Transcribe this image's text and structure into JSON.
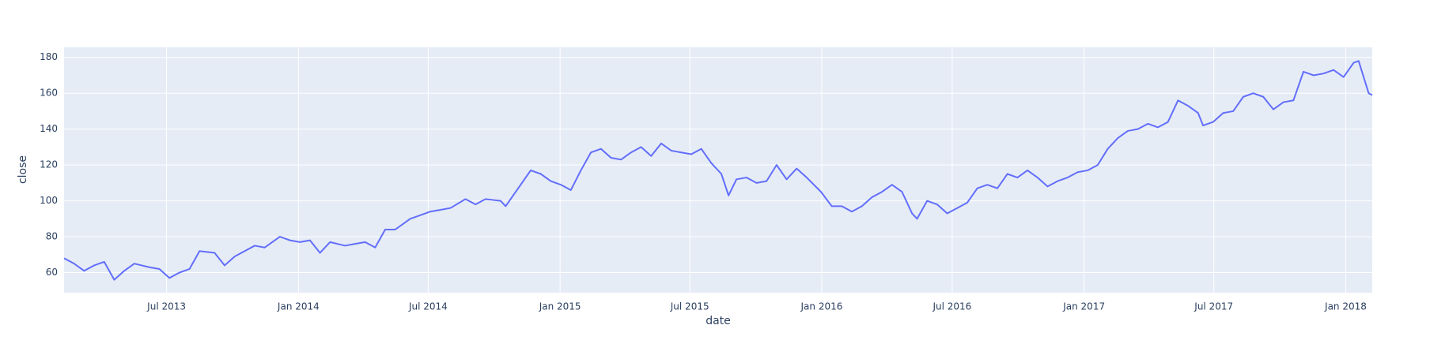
{
  "chart_data": {
    "type": "line",
    "xlabel": "date",
    "ylabel": "close",
    "color": "#636efa",
    "background": "#e5ecf6",
    "grid": true,
    "xlim": [
      "2013-02-08",
      "2018-02-07"
    ],
    "xticks": [
      {
        "value": "2013-07-01",
        "label": "Jul 2013"
      },
      {
        "value": "2014-01-01",
        "label": "Jan 2014"
      },
      {
        "value": "2014-07-01",
        "label": "Jul 2014"
      },
      {
        "value": "2015-01-01",
        "label": "Jan 2015"
      },
      {
        "value": "2015-07-01",
        "label": "Jul 2015"
      },
      {
        "value": "2016-01-01",
        "label": "Jan 2016"
      },
      {
        "value": "2016-07-01",
        "label": "Jul 2016"
      },
      {
        "value": "2017-01-01",
        "label": "Jan 2017"
      },
      {
        "value": "2017-07-01",
        "label": "Jul 2017"
      },
      {
        "value": "2018-01-01",
        "label": "Jan 2018"
      }
    ],
    "ylim": [
      48.8,
      185.6
    ],
    "yticks": [
      60,
      80,
      100,
      120,
      140,
      160,
      180
    ],
    "x": [
      "2013-02-08",
      "2013-02-22",
      "2013-03-08",
      "2013-03-22",
      "2013-04-05",
      "2013-04-19",
      "2013-05-03",
      "2013-05-17",
      "2013-06-07",
      "2013-06-21",
      "2013-07-05",
      "2013-07-19",
      "2013-08-02",
      "2013-08-16",
      "2013-09-06",
      "2013-09-20",
      "2013-10-04",
      "2013-10-18",
      "2013-11-01",
      "2013-11-15",
      "2013-12-06",
      "2013-12-20",
      "2014-01-03",
      "2014-01-17",
      "2014-01-31",
      "2014-02-14",
      "2014-03-07",
      "2014-03-21",
      "2014-04-04",
      "2014-04-18",
      "2014-05-02",
      "2014-05-16",
      "2014-06-06",
      "2014-06-20",
      "2014-07-04",
      "2014-07-18",
      "2014-08-01",
      "2014-08-22",
      "2014-09-05",
      "2014-09-19",
      "2014-10-10",
      "2014-10-17",
      "2014-11-07",
      "2014-11-21",
      "2014-12-05",
      "2014-12-19",
      "2015-01-02",
      "2015-01-16",
      "2015-01-30",
      "2015-02-13",
      "2015-02-27",
      "2015-03-13",
      "2015-03-27",
      "2015-04-10",
      "2015-04-24",
      "2015-05-08",
      "2015-05-22",
      "2015-06-05",
      "2015-06-19",
      "2015-07-03",
      "2015-07-17",
      "2015-07-31",
      "2015-08-14",
      "2015-08-24",
      "2015-09-04",
      "2015-09-18",
      "2015-10-02",
      "2015-10-16",
      "2015-10-30",
      "2015-11-13",
      "2015-11-27",
      "2015-12-11",
      "2015-12-31",
      "2016-01-15",
      "2016-01-29",
      "2016-02-12",
      "2016-02-26",
      "2016-03-11",
      "2016-03-25",
      "2016-04-08",
      "2016-04-22",
      "2016-05-06",
      "2016-05-13",
      "2016-05-27",
      "2016-06-10",
      "2016-06-24",
      "2016-07-08",
      "2016-07-22",
      "2016-08-05",
      "2016-08-19",
      "2016-09-02",
      "2016-09-16",
      "2016-09-30",
      "2016-10-14",
      "2016-10-28",
      "2016-11-11",
      "2016-11-25",
      "2016-12-09",
      "2016-12-23",
      "2017-01-06",
      "2017-01-20",
      "2017-02-03",
      "2017-02-17",
      "2017-03-03",
      "2017-03-17",
      "2017-03-31",
      "2017-04-14",
      "2017-04-28",
      "2017-05-12",
      "2017-05-26",
      "2017-06-09",
      "2017-06-16",
      "2017-06-30",
      "2017-07-14",
      "2017-07-28",
      "2017-08-11",
      "2017-08-25",
      "2017-09-08",
      "2017-09-22",
      "2017-10-06",
      "2017-10-20",
      "2017-11-03",
      "2017-11-17",
      "2017-12-01",
      "2017-12-15",
      "2017-12-29",
      "2018-01-12",
      "2018-01-19",
      "2018-02-02",
      "2018-02-07"
    ],
    "values": [
      68,
      65,
      61,
      64,
      66,
      56,
      61,
      65,
      63,
      62,
      57,
      60,
      62,
      72,
      71,
      64,
      69,
      72,
      75,
      74,
      80,
      78,
      77,
      78,
      71,
      77,
      75,
      76,
      77,
      74,
      84,
      84,
      90,
      92,
      94,
      95,
      96,
      101,
      98,
      101,
      100,
      97,
      109,
      117,
      115,
      111,
      109,
      106,
      117,
      127,
      129,
      124,
      123,
      127,
      130,
      125,
      132,
      128,
      127,
      126,
      129,
      121,
      115,
      103,
      112,
      113,
      110,
      111,
      120,
      112,
      118,
      113,
      105,
      97,
      97,
      94,
      97,
      102,
      105,
      109,
      105,
      93,
      90,
      100,
      98,
      93,
      96,
      99,
      107,
      109,
      107,
      115,
      113,
      117,
      113,
      108,
      111,
      113,
      116,
      117,
      120,
      129,
      135,
      139,
      140,
      143,
      141,
      144,
      156,
      153,
      149,
      142,
      144,
      149,
      150,
      158,
      160,
      158,
      151,
      155,
      156,
      172,
      170,
      171,
      173,
      169,
      177,
      178,
      160,
      159
    ]
  }
}
